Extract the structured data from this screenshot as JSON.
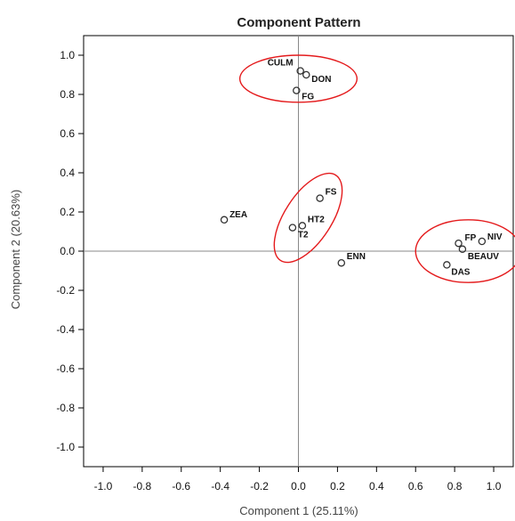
{
  "chart_data": {
    "type": "scatter",
    "title": "Component Pattern",
    "xlabel": "Component 1 (25.11%)",
    "ylabel": "Component 2 (20.63%)",
    "xlim": [
      -1.1,
      1.1
    ],
    "ylim": [
      -1.1,
      1.1
    ],
    "x_ticks": [
      "-1.0",
      "-0.8",
      "-0.6",
      "-0.4",
      "-0.2",
      "0.0",
      "0.2",
      "0.4",
      "0.6",
      "0.8",
      "1.0"
    ],
    "y_ticks": [
      "1.0",
      "0.8",
      "0.6",
      "0.4",
      "0.2",
      "0.0",
      "-0.2",
      "-0.4",
      "-0.6",
      "-0.8",
      "-1.0"
    ],
    "reference_lines": {
      "x": 0,
      "y": 0
    },
    "points": [
      {
        "label": "CULM",
        "x": 0.01,
        "y": 0.92
      },
      {
        "label": "DON",
        "x": 0.04,
        "y": 0.9
      },
      {
        "label": "FG",
        "x": -0.01,
        "y": 0.82
      },
      {
        "label": "FS",
        "x": 0.11,
        "y": 0.27
      },
      {
        "label": "HT2",
        "x": 0.02,
        "y": 0.13
      },
      {
        "label": "T2",
        "x": -0.03,
        "y": 0.12
      },
      {
        "label": "ZEA",
        "x": -0.38,
        "y": 0.16
      },
      {
        "label": "ENN",
        "x": 0.22,
        "y": -0.06
      },
      {
        "label": "FP",
        "x": 0.82,
        "y": 0.04
      },
      {
        "label": "NIV",
        "x": 0.94,
        "y": 0.05
      },
      {
        "label": "BEAUV",
        "x": 0.84,
        "y": 0.01
      },
      {
        "label": "DAS",
        "x": 0.76,
        "y": -0.07
      }
    ],
    "highlight_groups": [
      {
        "members": [
          "CULM",
          "DON",
          "FG"
        ],
        "center": [
          0.0,
          0.88
        ],
        "radii": [
          0.3,
          0.12
        ],
        "rotation_deg": 0
      },
      {
        "members": [
          "FS",
          "HT2",
          "T2"
        ],
        "center": [
          0.05,
          0.17
        ],
        "radii": [
          0.26,
          0.12
        ],
        "rotation_deg": -57
      },
      {
        "members": [
          "FP",
          "NIV",
          "BEAUV",
          "DAS"
        ],
        "center": [
          0.87,
          0.0
        ],
        "radii": [
          0.27,
          0.16
        ],
        "rotation_deg": 0
      }
    ],
    "colors": {
      "highlight": "#e41a1c",
      "marker": "#333333",
      "axes": "#000000",
      "reference": "#888888"
    }
  }
}
